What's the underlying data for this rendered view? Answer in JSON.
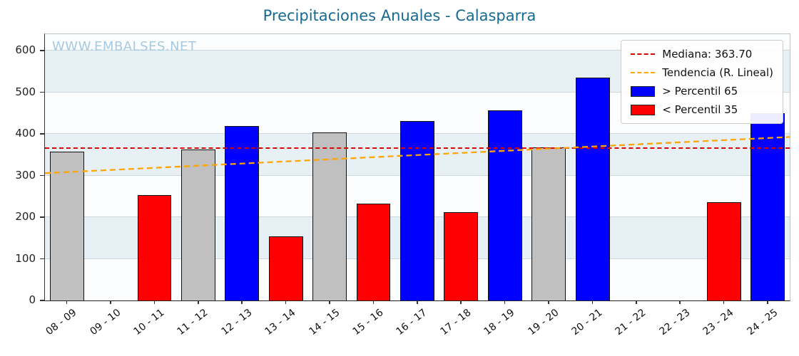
{
  "title": "Precipitaciones Anuales - Calasparra",
  "watermark": "WWW.EMBALSES.NET",
  "colors": {
    "title": "#176a93",
    "watermark": "#a5c9e0",
    "median": "#dd0000",
    "trend": "#ffa500",
    "blue": "#0000ff",
    "red": "#ff0000",
    "gray": "#c0c0c0",
    "bar_edge": "#111111"
  },
  "legend": [
    {
      "label": "Mediana: 363.70",
      "swatch": "dashed",
      "color_key": "median"
    },
    {
      "label": "Tendencia (R. Lineal)",
      "swatch": "dashed",
      "color_key": "trend"
    },
    {
      "label": "> Percentil 65",
      "swatch": "patch",
      "color_key": "blue"
    },
    {
      "label": "< Percentil 35",
      "swatch": "patch",
      "color_key": "red"
    }
  ],
  "chart_data": {
    "type": "bar",
    "title": "Precipitaciones Anuales - Calasparra",
    "xlabel": "",
    "ylabel": "",
    "ylim": [
      0,
      640
    ],
    "yticks": [
      0,
      100,
      200,
      300,
      400,
      500,
      600
    ],
    "grid": true,
    "legend_position": "upper right",
    "categories": [
      "08 - 09",
      "09 - 10",
      "10 - 11",
      "11 - 12",
      "12 - 13",
      "13 - 14",
      "14 - 15",
      "15 - 16",
      "16 - 17",
      "17 - 18",
      "18 - 19",
      "19 - 20",
      "20 - 21",
      "21 - 22",
      "22 - 23",
      "23 - 24",
      "24 - 25"
    ],
    "values": [
      358,
      0,
      253,
      362,
      419,
      154,
      404,
      232,
      432,
      213,
      457,
      368,
      536,
      0,
      0,
      236,
      450
    ],
    "bar_colors": [
      "gray",
      "none",
      "red",
      "gray",
      "blue",
      "red",
      "gray",
      "red",
      "blue",
      "red",
      "blue",
      "gray",
      "blue",
      "none",
      "none",
      "red",
      "blue"
    ],
    "median": 363.7,
    "trend_line": {
      "start_value": 306,
      "end_value": 393
    }
  }
}
